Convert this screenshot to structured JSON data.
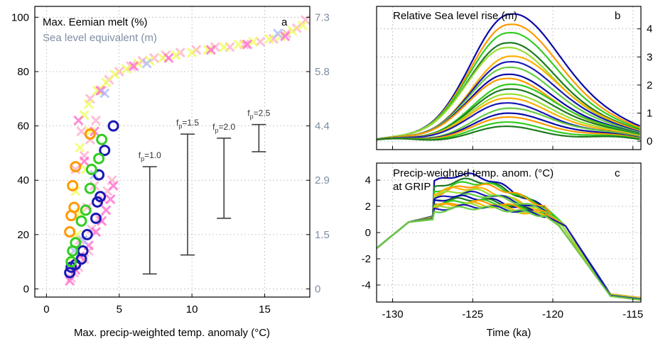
{
  "chart_data": [
    {
      "panel_label": "a",
      "type": "scatter",
      "title": "Max. Eemian melt (%)",
      "subtitle": "Sea level equivalent (m)",
      "xlabel": "Max. precip-weighted temp. anomaly (°C)",
      "ylabel": "",
      "xlim": [
        -0.8,
        18.1
      ],
      "ylim": [
        -3,
        104
      ],
      "grid": true,
      "x_ticks": [
        "0",
        "5",
        "10",
        "15"
      ],
      "y_ticks": [
        "0",
        "20",
        "40",
        "60",
        "80",
        "100"
      ],
      "y2_ticks": [
        "0",
        "1.5",
        "2.9",
        "4.4",
        "5.8",
        "7.3"
      ],
      "colors": {
        "blue": "#1a1ab4",
        "green": "#33cc22",
        "orange": "#ff9900",
        "pink": "#ff66cc",
        "lightyellow": "#eeff55",
        "lightpink": "#ffaacc",
        "lightblue": "#aabbff",
        "axis2": "#7f8ea3"
      },
      "cross_groups": [
        {
          "color": "lightpink",
          "points": [
            [
              1.7,
              4
            ],
            [
              1.9,
              6
            ],
            [
              2.2,
              8
            ],
            [
              2.6,
              11
            ],
            [
              2.9,
              14
            ],
            [
              2.3,
              18
            ],
            [
              3.1,
              22
            ],
            [
              3.6,
              26
            ],
            [
              2.8,
              30
            ],
            [
              3.9,
              33
            ],
            [
              4.2,
              36
            ],
            [
              3.3,
              38
            ],
            [
              4.5,
              40
            ],
            [
              2.0,
              44
            ],
            [
              2.6,
              49
            ],
            [
              3.0,
              55
            ],
            [
              2.4,
              58
            ],
            [
              3.4,
              62
            ],
            [
              3.0,
              70
            ],
            [
              3.8,
              73
            ],
            [
              4.3,
              77
            ],
            [
              5.0,
              80
            ],
            [
              5.8,
              82
            ],
            [
              6.6,
              84
            ],
            [
              7.4,
              85
            ],
            [
              8.2,
              86
            ],
            [
              9.2,
              87
            ],
            [
              10.3,
              88
            ],
            [
              11.6,
              89
            ],
            [
              12.6,
              89
            ],
            [
              13.6,
              90
            ],
            [
              14.7,
              91
            ],
            [
              15.6,
              92
            ],
            [
              16.5,
              94
            ],
            [
              17.2,
              96
            ],
            [
              17.8,
              99
            ]
          ]
        },
        {
          "color": "lightyellow",
          "points": [
            [
              1.8,
              12
            ],
            [
              2.1,
              20
            ],
            [
              2.3,
              28
            ],
            [
              2.0,
              36
            ],
            [
              2.7,
              44
            ],
            [
              2.3,
              52
            ],
            [
              3.0,
              58
            ],
            [
              2.6,
              64
            ],
            [
              2.9,
              68
            ],
            [
              3.5,
              73
            ],
            [
              4.1,
              76
            ],
            [
              4.7,
              79
            ],
            [
              5.5,
              81
            ],
            [
              6.3,
              83
            ],
            [
              7.1,
              84
            ],
            [
              8.0,
              85
            ],
            [
              8.9,
              86
            ],
            [
              10.0,
              87
            ],
            [
              11.1,
              88
            ],
            [
              12.2,
              89
            ],
            [
              13.2,
              90
            ],
            [
              14.2,
              91
            ],
            [
              15.3,
              92
            ],
            [
              16.1,
              93
            ],
            [
              16.9,
              95
            ],
            [
              17.6,
              97
            ]
          ]
        },
        {
          "color": "pink",
          "points": [
            [
              1.6,
              3
            ],
            [
              2.0,
              7
            ],
            [
              2.3,
              12
            ],
            [
              2.9,
              16
            ],
            [
              3.4,
              21
            ],
            [
              3.8,
              25
            ],
            [
              4.1,
              29
            ],
            [
              4.4,
              33
            ],
            [
              4.6,
              38
            ],
            [
              2.6,
              47
            ],
            [
              3.3,
              58
            ],
            [
              2.2,
              62
            ],
            [
              3.7,
              73
            ],
            [
              6.0,
              82
            ],
            [
              8.4,
              85
            ],
            [
              11.3,
              88
            ],
            [
              13.8,
              90
            ],
            [
              16.4,
              93
            ]
          ]
        },
        {
          "color": "lightblue",
          "points": [
            [
              1.9,
              14
            ],
            [
              2.5,
              18
            ],
            [
              3.3,
              42
            ],
            [
              4.0,
              72
            ],
            [
              6.9,
              83
            ],
            [
              15.9,
              94
            ]
          ]
        }
      ],
      "circle_groups": [
        {
          "color": "blue",
          "points": [
            [
              1.6,
              6
            ],
            [
              1.7,
              8
            ],
            [
              2.0,
              9
            ],
            [
              2.4,
              11
            ],
            [
              2.5,
              14
            ],
            [
              2.8,
              20
            ],
            [
              3.4,
              26
            ],
            [
              3.5,
              32
            ],
            [
              3.7,
              34
            ],
            [
              3.6,
              42
            ],
            [
              4.0,
              51
            ],
            [
              4.6,
              60
            ]
          ]
        },
        {
          "color": "green",
          "points": [
            [
              1.7,
              10
            ],
            [
              1.8,
              14
            ],
            [
              2.0,
              17
            ],
            [
              2.4,
              25
            ],
            [
              2.7,
              29
            ],
            [
              3.0,
              37
            ],
            [
              3.1,
              44
            ],
            [
              3.6,
              48
            ],
            [
              3.8,
              55
            ]
          ]
        },
        {
          "color": "orange",
          "points": [
            [
              1.6,
              21
            ],
            [
              1.7,
              27
            ],
            [
              1.9,
              30
            ],
            [
              1.8,
              38
            ],
            [
              2.0,
              45
            ],
            [
              3.0,
              57
            ]
          ]
        }
      ],
      "error_bars": [
        {
          "label_base": "f",
          "label_sub": "p",
          "label_value": "=1.0",
          "x": 7.1,
          "low": 5.5,
          "high": 45
        },
        {
          "label_base": "f",
          "label_sub": "p",
          "label_value": "=1.5",
          "x": 9.7,
          "low": 12.5,
          "high": 57
        },
        {
          "label_base": "f",
          "label_sub": "p",
          "label_value": "=2.0",
          "x": 12.2,
          "low": 26,
          "high": 55.5
        },
        {
          "label_base": "f",
          "label_sub": "p",
          "label_value": "=2.5",
          "x": 14.6,
          "low": 50.5,
          "high": 60.5
        }
      ]
    },
    {
      "panel_label": "b",
      "type": "line",
      "title": "Relative Sea level rise (m)",
      "xlim": [
        -131,
        -114.5
      ],
      "ylim": [
        -0.3,
        4.8
      ],
      "grid": true,
      "y_ticks": [
        "0",
        "1",
        "2",
        "3",
        "4"
      ],
      "peak_amplitudes": [
        4.45,
        4.08,
        3.78,
        3.42,
        3.25,
        2.95,
        2.75,
        2.55,
        2.3,
        2.15,
        1.95,
        1.78,
        1.6,
        1.45,
        1.28,
        1.1,
        0.92,
        0.78,
        0.6,
        0.45
      ],
      "color_cycle": [
        "#0a0aa8",
        "#ff9900",
        "#33cc22",
        "#1e7a1e",
        "#99dd33",
        "#ffb000",
        "#1a1ab4",
        "#66cc44"
      ]
    },
    {
      "panel_label": "c",
      "type": "line",
      "title": "Precip-weighted temp. anom. (°C)",
      "title_line2": "at GRIP",
      "xlabel": "Time (ka)",
      "xlim": [
        -131,
        -114.5
      ],
      "ylim": [
        -5.3,
        5.3
      ],
      "grid": true,
      "x_ticks": [
        "-130",
        "-125",
        "-120",
        "-115"
      ],
      "y_ticks": [
        "4",
        "2",
        "0",
        "-2",
        "-4"
      ],
      "peak_amplitudes": [
        4.4,
        4.0,
        3.8,
        3.6,
        3.4,
        3.2,
        3.0,
        2.85,
        2.7,
        2.55,
        2.4,
        2.3,
        2.2,
        2.1,
        2.0,
        1.9
      ],
      "color_cycle": [
        "#0a0aa8",
        "#1e7a1e",
        "#33cc22",
        "#ff9900",
        "#ffb000",
        "#99dd33",
        "#1a1ab4",
        "#66cc44"
      ]
    }
  ]
}
